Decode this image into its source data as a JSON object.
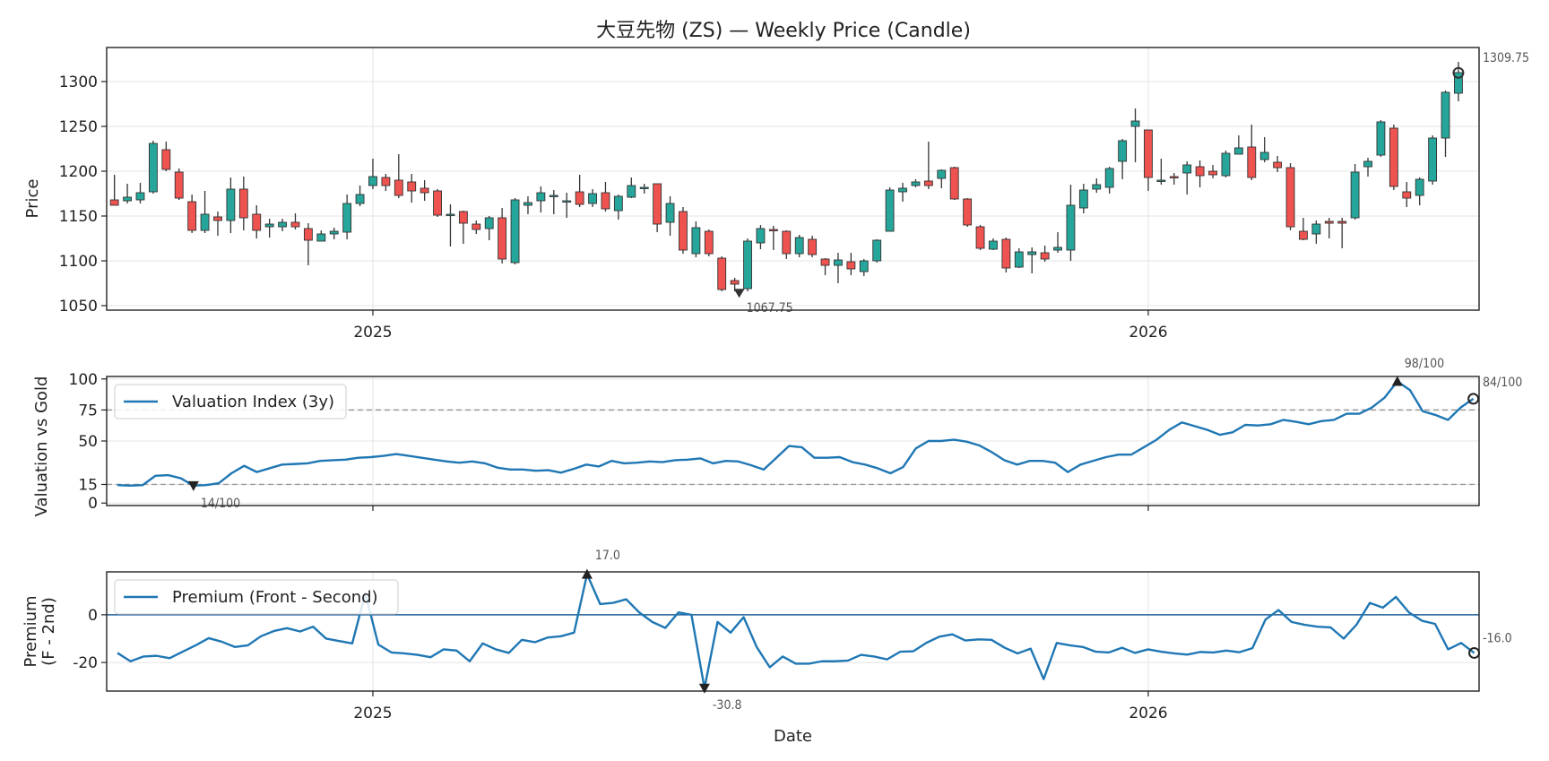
{
  "chart_data": [
    {
      "type": "candlestick",
      "title": "大豆先物 (ZS) — Weekly Price (Candle)",
      "ylabel": "Price",
      "ylim": [
        1045,
        1338
      ],
      "yticks": [
        1050,
        1100,
        1150,
        1200,
        1250,
        1300
      ],
      "xticks": [
        {
          "label": "2025",
          "index": 20
        },
        {
          "label": "2026",
          "index": 80
        }
      ],
      "colors": {
        "up": "#26a69a",
        "down": "#ef5350",
        "wick": "#333333"
      },
      "candles": [
        [
          1168,
          1162,
          1196,
          1162
        ],
        [
          1167,
          1171,
          1186,
          1164
        ],
        [
          1168,
          1176,
          1187,
          1164
        ],
        [
          1177,
          1231,
          1234,
          1175
        ],
        [
          1224,
          1202,
          1233,
          1200
        ],
        [
          1199,
          1170,
          1203,
          1168
        ],
        [
          1166,
          1134,
          1174,
          1131
        ],
        [
          1134,
          1152,
          1178,
          1131
        ],
        [
          1149,
          1145,
          1155,
          1128
        ],
        [
          1145,
          1180,
          1193,
          1131
        ],
        [
          1180,
          1148,
          1194,
          1134
        ],
        [
          1152,
          1134,
          1162,
          1125
        ],
        [
          1138,
          1141,
          1147,
          1126
        ],
        [
          1138,
          1143,
          1147,
          1133
        ],
        [
          1143,
          1138,
          1153,
          1135
        ],
        [
          1136,
          1123,
          1142,
          1095
        ],
        [
          1122,
          1130,
          1134,
          1123
        ],
        [
          1130,
          1133,
          1137,
          1124
        ],
        [
          1132,
          1164,
          1174,
          1124
        ],
        [
          1164,
          1174,
          1184,
          1161
        ],
        [
          1184,
          1194,
          1214,
          1180
        ],
        [
          1193,
          1184,
          1197,
          1178
        ],
        [
          1190,
          1173,
          1219,
          1170
        ],
        [
          1188,
          1178,
          1197,
          1165
        ],
        [
          1181,
          1176,
          1190,
          1167
        ],
        [
          1178,
          1151,
          1180,
          1149
        ],
        [
          1152,
          1152,
          1163,
          1116
        ],
        [
          1155,
          1142,
          1156,
          1119
        ],
        [
          1141,
          1135,
          1145,
          1130
        ],
        [
          1136,
          1148,
          1150,
          1123
        ],
        [
          1148,
          1102,
          1159,
          1097
        ],
        [
          1098,
          1168,
          1170,
          1096
        ],
        [
          1162,
          1165,
          1172,
          1152
        ],
        [
          1167,
          1176,
          1183,
          1154
        ],
        [
          1173,
          1173,
          1179,
          1152
        ],
        [
          1167,
          1167,
          1176,
          1148
        ],
        [
          1177,
          1163,
          1196,
          1160
        ],
        [
          1164,
          1175,
          1180,
          1160
        ],
        [
          1176,
          1158,
          1188,
          1155
        ],
        [
          1156,
          1172,
          1174,
          1146
        ],
        [
          1171,
          1184,
          1193,
          1170
        ],
        [
          1182,
          1182,
          1186,
          1175
        ],
        [
          1186,
          1141,
          1186,
          1132
        ],
        [
          1143,
          1164,
          1172,
          1128
        ],
        [
          1155,
          1112,
          1160,
          1108
        ],
        [
          1108,
          1137,
          1144,
          1104
        ],
        [
          1133,
          1108,
          1135,
          1105
        ],
        [
          1103,
          1068,
          1105,
          1066
        ],
        [
          1078,
          1074,
          1081,
          1066
        ],
        [
          1069,
          1122,
          1125,
          1066
        ],
        [
          1120,
          1136,
          1140,
          1113
        ],
        [
          1135,
          1134,
          1139,
          1112
        ],
        [
          1133,
          1108,
          1134,
          1102
        ],
        [
          1108,
          1126,
          1129,
          1104
        ],
        [
          1124,
          1107,
          1128,
          1104
        ],
        [
          1102,
          1095,
          1103,
          1084
        ],
        [
          1095,
          1101,
          1109,
          1075
        ],
        [
          1099,
          1091,
          1109,
          1084
        ],
        [
          1088,
          1100,
          1102,
          1083
        ],
        [
          1100,
          1123,
          1124,
          1098
        ],
        [
          1133,
          1179,
          1182,
          1133
        ],
        [
          1177,
          1181,
          1187,
          1166
        ],
        [
          1184,
          1188,
          1191,
          1182
        ],
        [
          1189,
          1184,
          1233,
          1180
        ],
        [
          1192,
          1201,
          1202,
          1181
        ],
        [
          1204,
          1169,
          1205,
          1168
        ],
        [
          1169,
          1140,
          1170,
          1138
        ],
        [
          1138,
          1114,
          1140,
          1112
        ],
        [
          1113,
          1122,
          1125,
          1112
        ],
        [
          1124,
          1092,
          1126,
          1087
        ],
        [
          1093,
          1110,
          1114,
          1092
        ],
        [
          1107,
          1110,
          1115,
          1086
        ],
        [
          1109,
          1102,
          1117,
          1099
        ],
        [
          1112,
          1115,
          1132,
          1109
        ],
        [
          1112,
          1162,
          1185,
          1100
        ],
        [
          1159,
          1179,
          1186,
          1153
        ],
        [
          1180,
          1185,
          1192,
          1176
        ],
        [
          1182,
          1203,
          1205,
          1175
        ],
        [
          1211,
          1234,
          1236,
          1191
        ],
        [
          1250,
          1256,
          1270,
          1210
        ],
        [
          1246,
          1193,
          1246,
          1178
        ],
        [
          1190,
          1190,
          1214,
          1185
        ],
        [
          1194,
          1193,
          1198,
          1185
        ],
        [
          1198,
          1207,
          1211,
          1174
        ],
        [
          1205,
          1195,
          1212,
          1182
        ],
        [
          1200,
          1196,
          1207,
          1192
        ],
        [
          1195,
          1220,
          1223,
          1193
        ],
        [
          1219,
          1226,
          1240,
          1219
        ],
        [
          1227,
          1193,
          1252,
          1190
        ],
        [
          1213,
          1221,
          1238,
          1210
        ],
        [
          1210,
          1204,
          1217,
          1199
        ],
        [
          1204,
          1138,
          1209,
          1134
        ],
        [
          1133,
          1124,
          1148,
          1123
        ],
        [
          1130,
          1141,
          1145,
          1119
        ],
        [
          1144,
          1142,
          1148,
          1125
        ],
        [
          1144,
          1142,
          1148,
          1114
        ],
        [
          1148,
          1199,
          1208,
          1146
        ],
        [
          1205,
          1211,
          1215,
          1194
        ],
        [
          1218,
          1255,
          1257,
          1216
        ],
        [
          1248,
          1183,
          1252,
          1179
        ],
        [
          1177,
          1170,
          1188,
          1160
        ],
        [
          1173,
          1191,
          1193,
          1162
        ],
        [
          1189,
          1237,
          1240,
          1185
        ],
        [
          1237,
          1288,
          1290,
          1216
        ],
        [
          1287,
          1310,
          1322,
          1278
        ]
      ],
      "annotations": [
        {
          "label": "1309.75",
          "index": 104,
          "value": 1309.75
        },
        {
          "label": "1067.75",
          "index": 48,
          "value": 1067.75
        }
      ]
    },
    {
      "type": "line",
      "ylabel": "Valuation vs Gold",
      "ylim": [
        -2,
        102
      ],
      "yticks": [
        0,
        15,
        50,
        75,
        100
      ],
      "threshold_lines": [
        15,
        75
      ],
      "series": [
        {
          "name": "Valuation Index (3y)",
          "color": "#1f77b4",
          "values": [
            14.5,
            14,
            14.5,
            22,
            22.5,
            20,
            14,
            14.5,
            16,
            24,
            30,
            25,
            28,
            31,
            31.5,
            32,
            34,
            34.5,
            35,
            36.5,
            37,
            38,
            39.5,
            38,
            36.5,
            35,
            33.5,
            32.5,
            33.5,
            32,
            28.5,
            27,
            27,
            26,
            26.5,
            24.5,
            27.5,
            31,
            29.5,
            34,
            32,
            32.5,
            33.5,
            33,
            34.5,
            35,
            36,
            32,
            34,
            33.5,
            30.5,
            27,
            36.5,
            46,
            45,
            36.5,
            36.5,
            37,
            33,
            31,
            28,
            24,
            29,
            44,
            50,
            50,
            51,
            49.5,
            46.5,
            41,
            34.5,
            31,
            34,
            34,
            32.5,
            25,
            31,
            34,
            37,
            39,
            39,
            45,
            51,
            59,
            65,
            62,
            59,
            55,
            57,
            63,
            62.5,
            63.5,
            67,
            65.5,
            63.5,
            66,
            67,
            72,
            72,
            77,
            85,
            98,
            91,
            74,
            71,
            67,
            77,
            84
          ]
        }
      ],
      "annotations": [
        {
          "label": "98/100",
          "index": 101,
          "value": 98,
          "marker": "up"
        },
        {
          "label": "14/100",
          "index": 6,
          "value": 14,
          "marker": "down"
        },
        {
          "label": "84/100",
          "index": 107,
          "value": 84,
          "marker": "circle"
        }
      ]
    },
    {
      "type": "line",
      "ylabel": "Premium\n(F - 2nd)",
      "xlabel": "Date",
      "ylim": [
        -32,
        18
      ],
      "yticks": [
        -20,
        0
      ],
      "reference_line": 0,
      "xticks": [
        {
          "label": "2025",
          "index": 17.5
        },
        {
          "label": "2026",
          "index": 71.5
        }
      ],
      "series": [
        {
          "name": "Premium (Front - Second)",
          "color": "#1f77b4",
          "values": [
            -16,
            -19.5,
            -17.5,
            -17.2,
            -18.2,
            -15.5,
            -12.8,
            -9.8,
            -11.3,
            -13.5,
            -12.8,
            -9,
            -6.8,
            -5.6,
            -7,
            -5,
            -10,
            -11,
            -12,
            9,
            -12.5,
            -15.8,
            -16.2,
            -16.8,
            -17.8,
            -14.5,
            -15,
            -19.5,
            -12,
            -14.5,
            -16,
            -10.5,
            -11.5,
            -9.5,
            -9,
            -7.5,
            17,
            4.5,
            5,
            6.5,
            1,
            -3,
            -5.5,
            1,
            0,
            -30.8,
            -3,
            -7.5,
            -1,
            -13.5,
            -22,
            -17.5,
            -20.5,
            -20.5,
            -19.5,
            -19.5,
            -19.2,
            -16.8,
            -17.5,
            -18.7,
            -15.5,
            -15.3,
            -11.8,
            -9.2,
            -8.2,
            -10.8,
            -10.3,
            -10.5,
            -13.8,
            -16.2,
            -14.2,
            -27,
            -11.8,
            -12.8,
            -13.5,
            -15.5,
            -15.8,
            -13.8,
            -16,
            -14.5,
            -15.5,
            -16.2,
            -16.7,
            -15.6,
            -15.8,
            -15,
            -15.7,
            -14,
            -2,
            2,
            -3,
            -4.2,
            -5,
            -5.3,
            -10,
            -4,
            5,
            3,
            7.5,
            1,
            -2.5,
            -3.8,
            -14.5,
            -11.8,
            -16
          ]
        }
      ],
      "annotations": [
        {
          "label": "17.0",
          "index": 36,
          "value": 17,
          "marker": "up"
        },
        {
          "label": "-30.8",
          "index": 45,
          "value": -30.8,
          "marker": "down"
        },
        {
          "label": "-16.0",
          "index": 104,
          "value": -16,
          "marker": "circle"
        }
      ]
    }
  ]
}
